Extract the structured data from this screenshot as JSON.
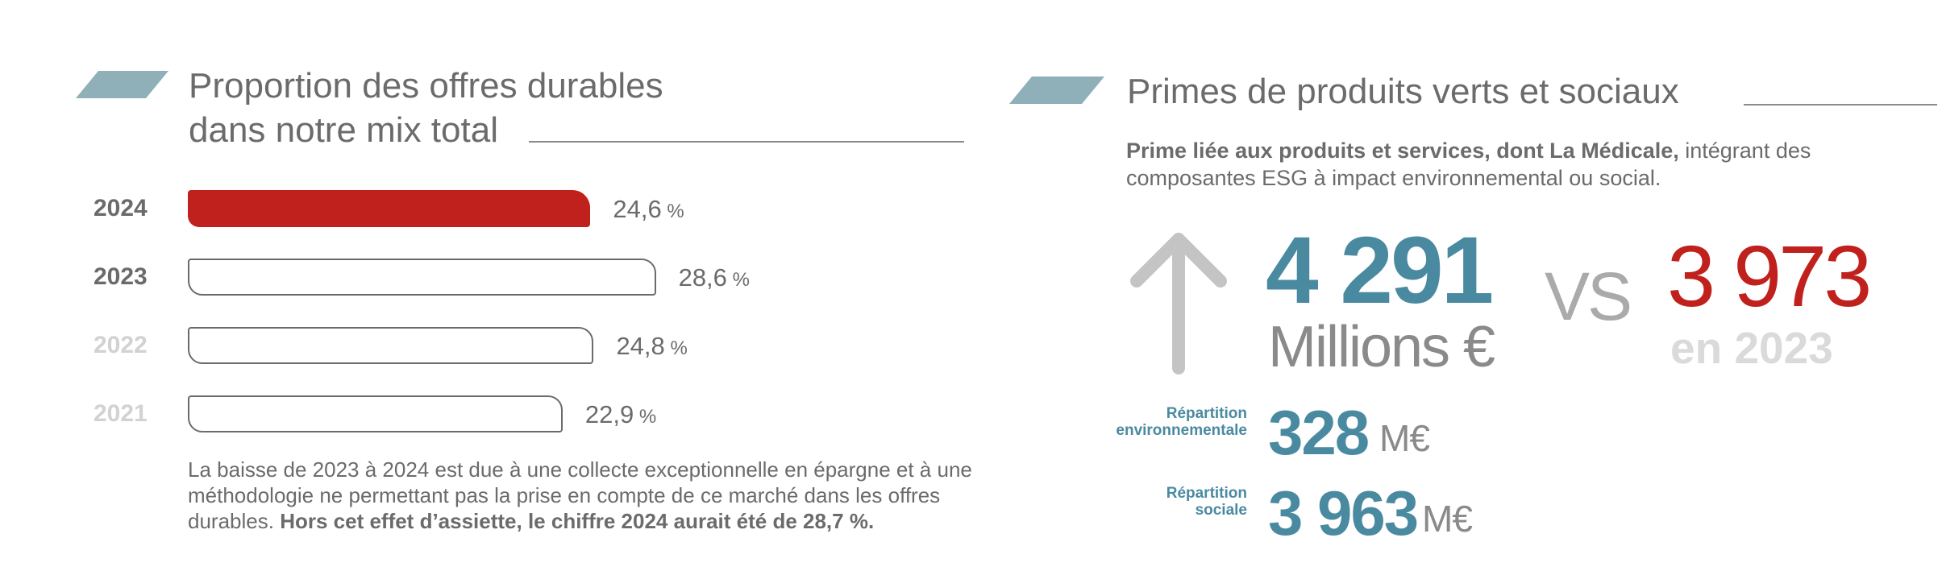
{
  "left_panel": {
    "title_line1": "Proportion des offres durables",
    "title_line2": "dans notre mix total",
    "note_text": "La baisse de 2023 à 2024 est due à une collecte exceptionnelle en épargne et à une méthodologie ne permettant pas la prise en compte de ce marché dans les offres durables. ",
    "note_bold": "Hors cet effet d’assiette, le chiffre 2024 aurait été de 28,7 %."
  },
  "chart_data": {
    "type": "bar",
    "orientation": "horizontal",
    "categories": [
      "2024",
      "2023",
      "2022",
      "2021"
    ],
    "values": [
      24.6,
      28.6,
      24.8,
      22.9
    ],
    "value_labels": [
      "24,6",
      "28,6",
      "24,8",
      "22,9"
    ],
    "unit": "%",
    "title": "Proportion des offres durables dans notre mix total",
    "xlim": [
      0,
      35
    ],
    "highlight_color": "#c0211c",
    "outline_color": "#6b6b6b",
    "year_label_colors": [
      "#6b6b6b",
      "#6b6b6b",
      "#d2d2d2",
      "#d2d2d2"
    ]
  },
  "right_panel": {
    "title": "Primes de produits verts et sociaux",
    "intro_bold": "Prime liée aux produits et services, dont La Médicale,",
    "intro_rest": " intégrant des composantes ESG à impact environnemental ou social.",
    "main_value": "4 291",
    "main_unit": "Millions €",
    "vs_label": "VS",
    "prev_value": "3 973",
    "prev_label": "en 2023",
    "env_label_line1": "Répartition",
    "env_label_line2": "environnementale",
    "env_value": "328",
    "env_unit": "M€",
    "soc_label_line1": "Répartition",
    "soc_label_line2": "sociale",
    "soc_value": "3 963",
    "soc_unit": "M€",
    "accent_color": "#4a8aa0",
    "arrow_icon": "arrow-up-icon"
  }
}
